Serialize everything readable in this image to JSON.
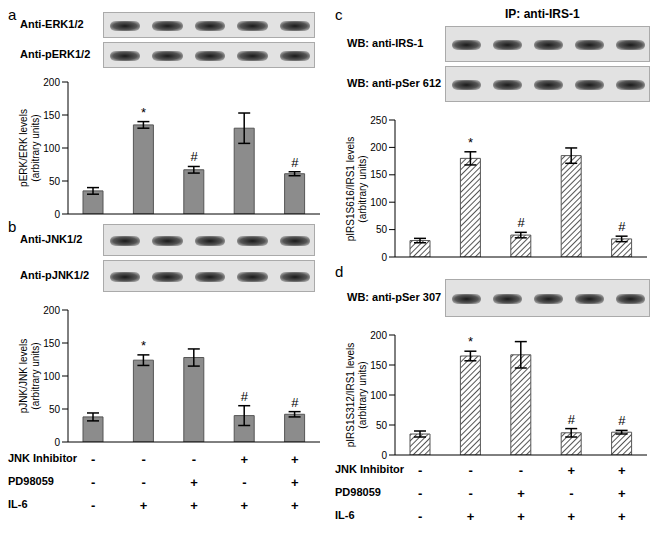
{
  "chart_data": [
    {
      "type": "bar",
      "panel": "a",
      "blots": [
        "Anti-ERK1/2",
        "Anti-pERK1/2"
      ],
      "ylabel": [
        "pERK/ERK levels",
        "(arbitrary units)"
      ],
      "categories": [
        null,
        null,
        null,
        null,
        null
      ],
      "values": [
        35,
        135,
        67,
        130,
        61
      ],
      "errors": [
        5,
        5,
        5,
        23,
        3
      ],
      "annotations": [
        null,
        "*",
        "#",
        null,
        "#"
      ],
      "color": "#8c8c8c",
      "ylim": [
        0,
        200
      ],
      "yticks": [
        0,
        50,
        100,
        150,
        200
      ],
      "grid": false,
      "tick_labels": "y"
    },
    {
      "type": "bar",
      "panel": "b",
      "blots": [
        "Anti-JNK1/2",
        "Anti-pJNK1/2"
      ],
      "ylabel": [
        "pJNK/JNK levels",
        "(arbitrary units)"
      ],
      "categories": [
        null,
        null,
        null,
        null,
        null
      ],
      "values": [
        38,
        124,
        128,
        40,
        42
      ],
      "errors": [
        6,
        8,
        13,
        15,
        4
      ],
      "annotations": [
        null,
        "*",
        null,
        "#",
        "#"
      ],
      "color": "#8c8c8c",
      "ylim": [
        0,
        200
      ],
      "yticks": [
        0,
        50,
        100,
        150,
        200
      ],
      "grid": false,
      "tick_labels": "y",
      "treatments": [
        {
          "label": "JNK Inhibitor",
          "values": [
            "-",
            "-",
            "-",
            "+",
            "+"
          ]
        },
        {
          "label": "PD98059",
          "values": [
            "-",
            "-",
            "+",
            "-",
            "+"
          ]
        },
        {
          "label": "IL-6",
          "values": [
            "-",
            "+",
            "+",
            "+",
            "+"
          ]
        }
      ]
    },
    {
      "type": "bar",
      "panel": "c",
      "header": "IP: anti-IRS-1",
      "blots": [
        "WB: anti-IRS-1",
        "WB: anti-pSer 612"
      ],
      "ylabel": [
        "pIRS1S616/IRS1 levels",
        "(arbitrary units)"
      ],
      "categories": [
        null,
        null,
        null,
        null,
        null
      ],
      "values": [
        30,
        180,
        40,
        185,
        33
      ],
      "errors": [
        4,
        12,
        5,
        14,
        5
      ],
      "annotations": [
        null,
        "*",
        "#",
        null,
        "#"
      ],
      "color": "#555555",
      "ylim": [
        0,
        250
      ],
      "yticks": [
        0,
        50,
        100,
        150,
        200,
        250
      ],
      "grid": false,
      "tick_labels": "y"
    },
    {
      "type": "bar",
      "panel": "d",
      "blots": [
        "WB: anti-pSer 307"
      ],
      "ylabel": [
        "pIRS1S312/IRS1 levels",
        "(arbitrary units)"
      ],
      "categories": [
        null,
        null,
        null,
        null,
        null
      ],
      "values": [
        35,
        165,
        167,
        37,
        38
      ],
      "errors": [
        5,
        8,
        22,
        7,
        3
      ],
      "annotations": [
        null,
        "*",
        null,
        "#",
        "#"
      ],
      "color": "#555555",
      "ylim": [
        0,
        200
      ],
      "yticks": [
        0,
        50,
        100,
        150,
        200
      ],
      "grid": false,
      "tick_labels": "y",
      "treatments": [
        {
          "label": "JNK Inhibitor",
          "values": [
            "-",
            "-",
            "-",
            "+",
            "+"
          ]
        },
        {
          "label": "PD98059",
          "values": [
            "-",
            "-",
            "+",
            "-",
            "+"
          ]
        },
        {
          "label": "IL-6",
          "values": [
            "-",
            "+",
            "+",
            "+",
            "+"
          ]
        }
      ]
    }
  ]
}
